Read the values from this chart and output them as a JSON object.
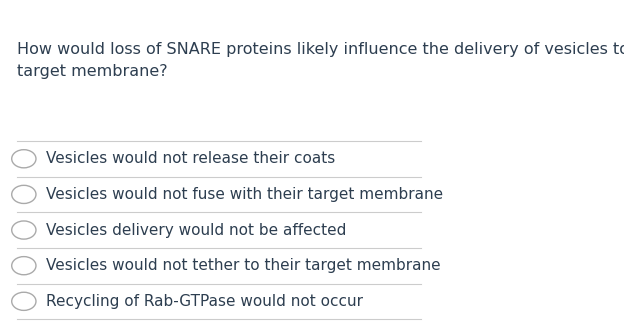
{
  "background_color": "#ffffff",
  "question": "How would loss of SNARE proteins likely influence the delivery of vesicles to their\ntarget membrane?",
  "question_color": "#2d3e50",
  "question_fontsize": 11.5,
  "options": [
    "Vesicles would not release their coats",
    "Vesicles would not fuse with their target membrane",
    "Vesicles delivery would not be affected",
    "Vesicles would not tether to their target membrane",
    "Recycling of Rab-GTPase would not occur"
  ],
  "option_color": "#2d3e50",
  "option_fontsize": 11,
  "circle_color": "#aaaaaa",
  "line_color": "#cccccc",
  "line_width": 0.8,
  "figsize": [
    6.24,
    3.24
  ],
  "dpi": 100
}
